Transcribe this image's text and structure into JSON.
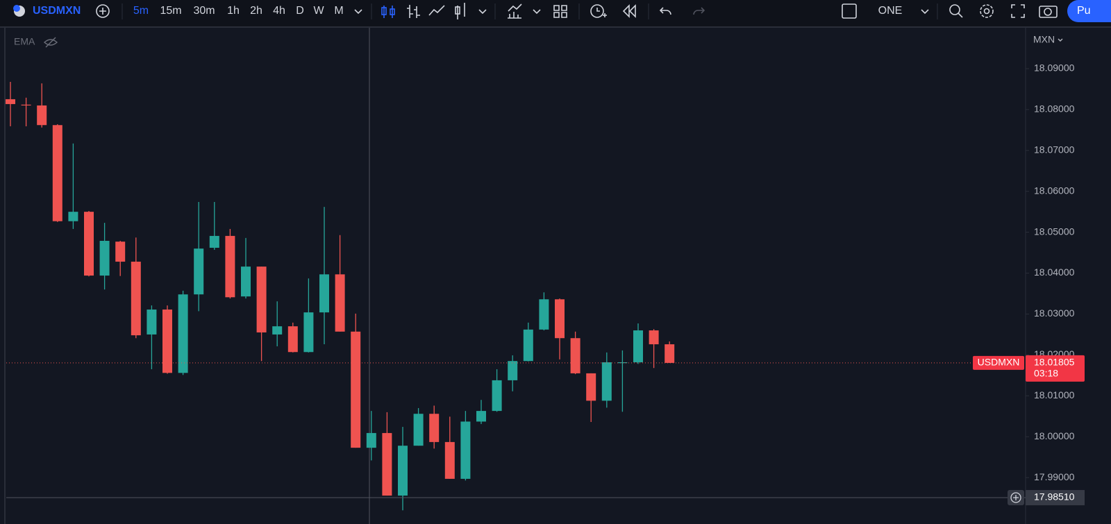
{
  "toolbar": {
    "symbol": "USDMXN",
    "intervals": [
      "5m",
      "15m",
      "30m",
      "1h",
      "2h",
      "4h",
      "D",
      "W",
      "M"
    ],
    "layout": "ONE",
    "publish": "Pu"
  },
  "legend": {
    "indicator": "EMA"
  },
  "chart_data": {
    "type": "candlestick",
    "currency": "MXN",
    "symbol_label": "USDMXN",
    "up_color": "#26a69a",
    "down_color": "#ef5350",
    "open": [
      18.08253,
      18.0812,
      18.081,
      18.0762,
      18.0527,
      18.055,
      18.0394,
      18.0477,
      18.0428,
      18.025,
      18.0311,
      18.0156,
      18.0348,
      18.0462,
      18.0491,
      18.0343,
      18.0416,
      18.025,
      18.027,
      18.0207,
      18.0304,
      18.0397,
      18.0257,
      17.9973,
      18.0009,
      17.9856,
      17.9978,
      18.0056,
      17.9987,
      17.9897,
      18.0037,
      18.0063,
      18.0138,
      18.0185,
      18.0262,
      18.0336,
      18.0241,
      18.0155,
      18.0088,
      18.018,
      18.0182,
      18.026,
      18.0226
    ],
    "high": [
      18.08677,
      18.0829,
      18.0864,
      18.0764,
      18.0717,
      18.0552,
      18.0523,
      18.0479,
      18.0487,
      18.0321,
      18.0321,
      18.0357,
      18.0574,
      18.0574,
      18.0508,
      18.0486,
      18.0416,
      18.0331,
      18.0279,
      18.0387,
      18.0562,
      18.0493,
      18.0301,
      18.0063,
      18.006,
      18.0024,
      18.007,
      18.0076,
      18.0049,
      18.0063,
      18.009,
      18.0165,
      18.0199,
      18.0279,
      18.0353,
      18.0338,
      18.0257,
      18.0155,
      18.0206,
      18.0211,
      18.0277,
      18.0263,
      18.0233
    ],
    "low": [
      18.07591,
      18.0759,
      18.0756,
      18.0525,
      18.0508,
      18.0392,
      18.036,
      18.0393,
      18.0241,
      18.0165,
      18.0154,
      18.0151,
      18.0307,
      18.0457,
      18.0338,
      18.0338,
      18.0185,
      18.0221,
      18.0206,
      18.0206,
      18.0226,
      18.0257,
      17.9973,
      17.9942,
      17.9856,
      17.982,
      17.9978,
      17.9971,
      17.9897,
      17.9893,
      18.0031,
      18.0061,
      18.0111,
      18.0184,
      18.026,
      18.0189,
      18.0153,
      18.0036,
      18.0071,
      18.0061,
      18.0178,
      18.0168,
      18.01805
    ],
    "close": [
      18.08134,
      18.081,
      18.0762,
      18.0527,
      18.055,
      18.0394,
      18.0479,
      18.0428,
      18.0248,
      18.0311,
      18.0156,
      18.0348,
      18.046,
      18.0491,
      18.0341,
      18.0416,
      18.0255,
      18.027,
      18.0207,
      18.0304,
      18.0397,
      18.0257,
      17.9973,
      18.0009,
      17.9856,
      17.9978,
      18.0056,
      17.9987,
      17.9897,
      18.0037,
      18.0063,
      18.0138,
      18.0185,
      18.0262,
      18.0336,
      18.0241,
      18.0155,
      18.0088,
      18.0182,
      18.0182,
      18.026,
      18.0226,
      18.01805
    ],
    "ylim": [
      17.9812,
      18.1
    ],
    "yticks": [
      {
        "value": 17.99,
        "label": "17.99000"
      },
      {
        "value": 18.0,
        "label": "18.00000"
      },
      {
        "value": 18.01,
        "label": "18.01000"
      },
      {
        "value": 18.02,
        "label": "18.02000"
      },
      {
        "value": 18.03,
        "label": "18.03000"
      },
      {
        "value": 18.04,
        "label": "18.04000"
      },
      {
        "value": 18.05,
        "label": "18.05000"
      },
      {
        "value": 18.06,
        "label": "18.06000"
      },
      {
        "value": 18.07,
        "label": "18.07000"
      },
      {
        "value": 18.08,
        "label": "18.08000"
      },
      {
        "value": 18.09,
        "label": "18.09000"
      }
    ],
    "last_price": 18.01805,
    "countdown": "03:18",
    "crosshair_price": {
      "value": 17.9851,
      "label": "17.98510"
    }
  }
}
